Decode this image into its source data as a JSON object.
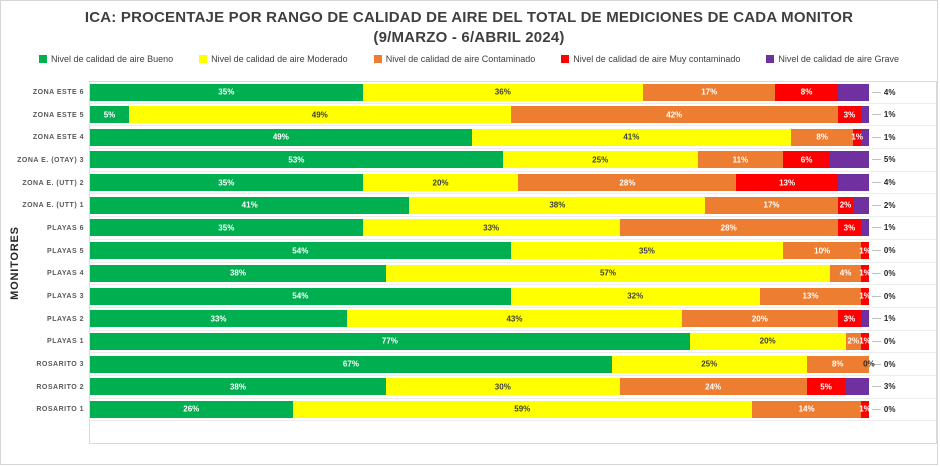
{
  "title": {
    "line1": "ICA: PROCENTAJE POR RANGO DE CALIDAD DE AIRE DEL TOTAL DE MEDICIONES DE CADA MONITOR",
    "line2": "(9/MARZO - 6/ABRIL 2024)"
  },
  "y_axis_title": "MONITORES",
  "legend": [
    {
      "label": "Nivel de calidad de aire Bueno",
      "color": "#00B050"
    },
    {
      "label": "Nivel de calidad de aire Moderado",
      "color": "#FFFF00"
    },
    {
      "label": "Nivel de calidad de aire Contaminado",
      "color": "#ED7D31"
    },
    {
      "label": "Nivel de calidad de aire Muy contaminado",
      "color": "#FF0000"
    },
    {
      "label": "Nivel de calidad de aire Grave",
      "color": "#7030A0"
    }
  ],
  "chart_data": {
    "type": "bar",
    "orientation": "horizontal-stacked",
    "unit": "%",
    "xlim": [
      0,
      100
    ],
    "legend_position": "top",
    "grid": "category-separators",
    "title": "ICA: PROCENTAJE POR RANGO DE CALIDAD DE AIRE DEL TOTAL DE MEDICIONES DE CADA MONITOR (9/MARZO - 6/ABRIL 2024)",
    "ylabel": "MONITORES",
    "categories": [
      "ZONA ESTE 6",
      "ZONA ESTE 5",
      "ZONA ESTE 4",
      "ZONA E. (OTAY) 3",
      "ZONA E. (UTT) 2",
      "ZONA E. (UTT) 1",
      "PLAYAS 6",
      "PLAYAS 5",
      "PLAYAS 4",
      "PLAYAS 3",
      "PLAYAS 2",
      "PLAYAS 1",
      "ROSARITO 3",
      "ROSARITO 2",
      "ROSARITO 1"
    ],
    "series": [
      {
        "key": "bueno",
        "name": "Nivel de calidad de aire Bueno",
        "color": "#00B050",
        "label_color": "#ffffff",
        "show_labels": true,
        "values": [
          35,
          5,
          49,
          53,
          35,
          41,
          35,
          54,
          38,
          54,
          33,
          77,
          67,
          38,
          26
        ]
      },
      {
        "key": "moderado",
        "name": "Nivel de calidad de aire Moderado",
        "color": "#FFFF00",
        "label_color": "#404040",
        "show_labels": true,
        "values": [
          36,
          49,
          41,
          25,
          20,
          38,
          33,
          35,
          57,
          32,
          43,
          20,
          25,
          30,
          59
        ]
      },
      {
        "key": "contaminado",
        "name": "Nivel de calidad de aire Contaminado",
        "color": "#ED7D31",
        "label_color": "#ffffff",
        "show_labels": true,
        "values": [
          17,
          42,
          8,
          11,
          28,
          17,
          28,
          10,
          4,
          13,
          20,
          2,
          8,
          24,
          14
        ]
      },
      {
        "key": "muy-contaminado",
        "name": "Nivel de calidad de aire Muy contaminado",
        "color": "#FF0000",
        "label_color": "#ffffff",
        "show_labels": true,
        "values": [
          8,
          3,
          1,
          6,
          13,
          2,
          3,
          1,
          1,
          1,
          3,
          1,
          0,
          5,
          1
        ]
      },
      {
        "key": "grave",
        "name": "Nivel de calidad de aire Grave",
        "color": "#7030A0",
        "label_color": null,
        "show_labels": false,
        "values": [
          4,
          1,
          1,
          5,
          4,
          2,
          1,
          0,
          0,
          0,
          1,
          0,
          0,
          3,
          0
        ]
      }
    ],
    "end_labels": [
      "4%",
      "1%",
      "1%",
      "5%",
      "4%",
      "2%",
      "1%",
      "0%",
      "0%",
      "0%",
      "1%",
      "0%",
      "0%",
      "3%",
      "0%"
    ],
    "zero_label_color": "#262626",
    "trailing_empty_rows": 1
  }
}
